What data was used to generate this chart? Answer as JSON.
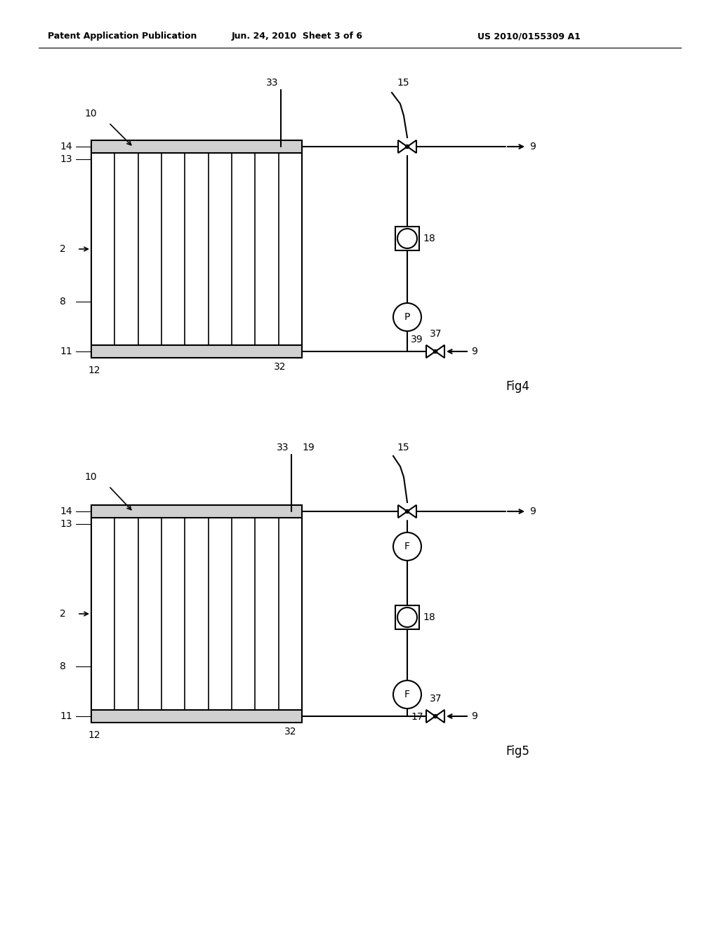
{
  "header_left": "Patent Application Publication",
  "header_mid": "Jun. 24, 2010  Sheet 3 of 6",
  "header_right": "US 2010/0155309 A1",
  "background_color": "#ffffff",
  "line_color": "#000000",
  "fig4_label": "Fig4",
  "fig5_label": "Fig5"
}
